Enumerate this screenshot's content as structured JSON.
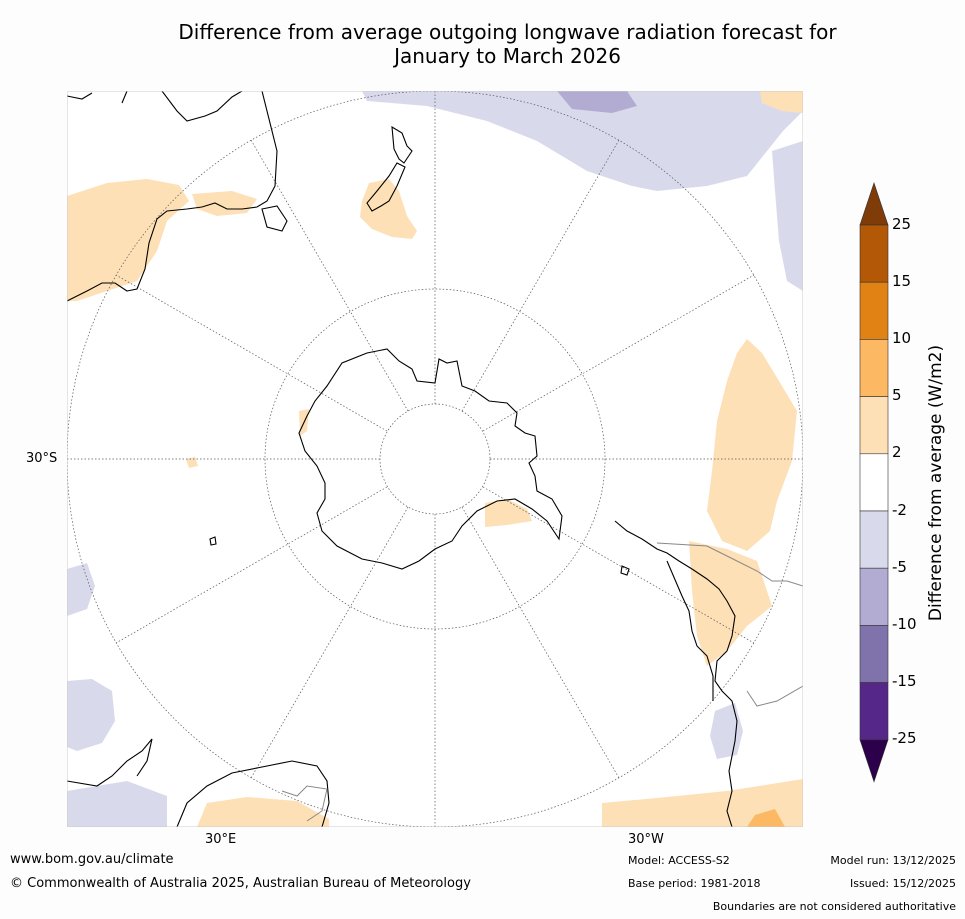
{
  "title": {
    "line1": "Difference from average outgoing longwave radiation forecast for",
    "line2": "January to March 2026"
  },
  "map": {
    "labels": {
      "lat_left": "30°S",
      "lon_bottom_left": "30°E",
      "lon_bottom_right": "30°W"
    }
  },
  "colorbar": {
    "title": "Difference from average (W/m2)",
    "ticks": [
      "25",
      "15",
      "10",
      "5",
      "2",
      "-2",
      "-5",
      "-10",
      "-15",
      "-25"
    ],
    "bins": [
      {
        "range": "above 25",
        "color": "#7f3b08"
      },
      {
        "range": "15 to 25",
        "color": "#b35806"
      },
      {
        "range": "10 to 15",
        "color": "#e08214"
      },
      {
        "range": "5 to 10",
        "color": "#fdb863"
      },
      {
        "range": "2 to 5",
        "color": "#fee0b6"
      },
      {
        "range": "-2 to 2",
        "color": "#ffffff"
      },
      {
        "range": "-5 to -2",
        "color": "#d8daeb"
      },
      {
        "range": "-10 to -5",
        "color": "#b2abd2"
      },
      {
        "range": "-15 to -10",
        "color": "#8073ac"
      },
      {
        "range": "-25 to -15",
        "color": "#542788"
      },
      {
        "range": "below -25",
        "color": "#2d004b"
      }
    ]
  },
  "footer": {
    "website": "www.bom.gov.au/climate",
    "copyright": "© Commonwealth of Australia 2025, Australian Bureau of Meteorology",
    "model": "Model: ACCESS-S2",
    "base_period": "Base period: 1981-2018",
    "model_run": "Model run: 13/12/2025",
    "issued": "Issued: 15/12/2025",
    "disclaimer": "Boundaries are not considered authoritative"
  }
}
